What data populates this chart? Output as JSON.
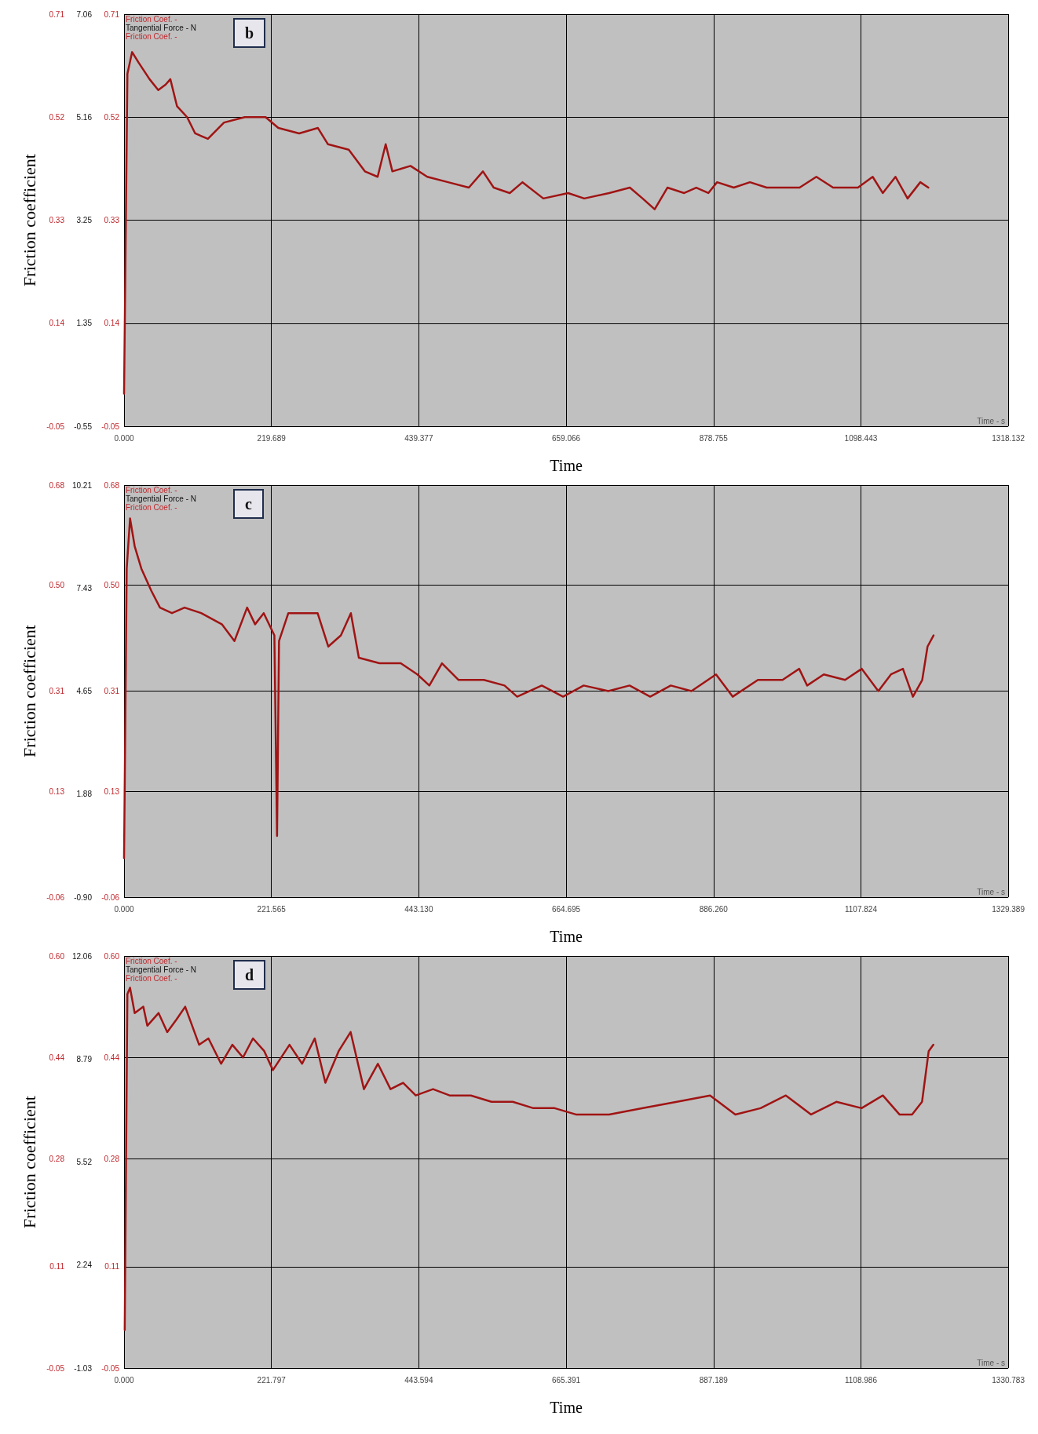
{
  "chart_data": [
    {
      "type": "line",
      "title": "b",
      "xlabel": "Time",
      "ylabel": "Friction coefficient",
      "annotations": [
        "Friction Coef. -",
        "Tangential Force - N",
        "Friction Coef. -",
        "Time - s"
      ],
      "grid": true,
      "marker": "none",
      "xlim": [
        0,
        1318.132
      ],
      "xticks": [
        {
          "value": 0,
          "label": "0.000"
        },
        219.689,
        439.377,
        659.066,
        878.755,
        1098.443,
        1318.132
      ],
      "ylim": [
        -0.05,
        0.71
      ],
      "yticks": [
        -0.05,
        0.14,
        0.33,
        0.52,
        0.71
      ],
      "y2lim": [
        -0.55,
        7.06
      ],
      "y2ticks": [
        -0.55,
        1.35,
        3.25,
        5.16,
        7.06
      ],
      "y3lim": [
        -0.05,
        0.71
      ],
      "y3ticks": [
        -0.05,
        0.14,
        0.33,
        0.52,
        0.71
      ],
      "x": [
        0,
        5,
        12,
        22,
        38,
        51,
        62,
        69,
        79,
        94,
        106,
        125,
        149,
        180,
        211,
        230,
        261,
        289,
        304,
        335,
        359,
        378,
        390,
        400,
        427,
        452,
        483,
        514,
        535,
        551,
        575,
        594,
        625,
        662,
        686,
        723,
        754,
        773,
        791,
        810,
        835,
        853,
        871,
        884,
        909,
        933,
        958,
        983,
        1007,
        1032,
        1057,
        1094,
        1116,
        1131,
        1150,
        1168,
        1187,
        1199
      ],
      "series": [
        {
          "color": "#a01414",
          "values": [
            0.01,
            0.6,
            0.64,
            0.62,
            0.59,
            0.57,
            0.58,
            0.59,
            0.54,
            0.52,
            0.49,
            0.48,
            0.51,
            0.52,
            0.52,
            0.5,
            0.49,
            0.5,
            0.47,
            0.46,
            0.42,
            0.41,
            0.47,
            0.42,
            0.43,
            0.41,
            0.4,
            0.39,
            0.42,
            0.39,
            0.38,
            0.4,
            0.37,
            0.38,
            0.37,
            0.38,
            0.39,
            0.37,
            0.35,
            0.39,
            0.38,
            0.39,
            0.38,
            0.4,
            0.39,
            0.4,
            0.39,
            0.39,
            0.39,
            0.41,
            0.39,
            0.39,
            0.41,
            0.38,
            0.41,
            0.37,
            0.4,
            0.39
          ]
        }
      ]
    },
    {
      "type": "line",
      "title": "c",
      "xlabel": "Time",
      "ylabel": "Friction coefficient",
      "annotations": [
        "Friction Coef. -",
        "Tangential Force - N",
        "Friction Coef. -",
        "Time - s"
      ],
      "grid": true,
      "marker": "none",
      "xlim": [
        0,
        1329.389
      ],
      "xticks": [
        {
          "value": 0,
          "label": "0.000"
        },
        221.565,
        {
          "value": 443.13,
          "label": "443.130"
        },
        664.695,
        {
          "value": 886.26,
          "label": "886.260"
        },
        1107.824,
        1329.389
      ],
      "ylim": [
        -0.06,
        0.68
      ],
      "yticks": [
        -0.06,
        0.13,
        0.31,
        {
          "value": 0.5,
          "label": "0.50"
        },
        0.68
      ],
      "y2lim": [
        -0.9,
        10.21
      ],
      "y2ticks": [
        {
          "value": -0.9,
          "label": "-0.90"
        },
        1.88,
        4.65,
        7.43,
        10.21
      ],
      "y3lim": [
        -0.06,
        0.68
      ],
      "y3ticks": [
        -0.06,
        0.13,
        0.31,
        {
          "value": 0.5,
          "label": "0.50"
        },
        0.68
      ],
      "x": [
        0,
        4,
        9,
        16,
        26,
        41,
        54,
        72,
        91,
        116,
        147,
        166,
        185,
        197,
        210,
        226,
        230,
        233,
        247,
        266,
        291,
        307,
        326,
        341,
        353,
        384,
        416,
        441,
        459,
        478,
        503,
        541,
        572,
        591,
        628,
        660,
        691,
        728,
        760,
        791,
        822,
        853,
        890,
        915,
        953,
        990,
        1015,
        1027,
        1052,
        1084,
        1109,
        1134,
        1153,
        1171,
        1186,
        1200,
        1208,
        1217
      ],
      "series": [
        {
          "color": "#a01414",
          "values": [
            0.01,
            0.53,
            0.62,
            0.57,
            0.53,
            0.49,
            0.46,
            0.45,
            0.46,
            0.45,
            0.43,
            0.4,
            0.46,
            0.43,
            0.45,
            0.41,
            0.05,
            0.4,
            0.45,
            0.45,
            0.45,
            0.39,
            0.41,
            0.45,
            0.37,
            0.36,
            0.36,
            0.34,
            0.32,
            0.36,
            0.33,
            0.33,
            0.32,
            0.3,
            0.32,
            0.3,
            0.32,
            0.31,
            0.32,
            0.3,
            0.32,
            0.31,
            0.34,
            0.3,
            0.33,
            0.33,
            0.35,
            0.32,
            0.34,
            0.33,
            0.35,
            0.31,
            0.34,
            0.35,
            0.3,
            0.33,
            0.39,
            0.41
          ]
        }
      ]
    },
    {
      "type": "line",
      "title": "d",
      "xlabel": "Time",
      "ylabel": "Friction coefficient",
      "annotations": [
        "Friction Coef. -",
        "Tangential Force - N",
        "Friction Coef. -",
        "Time - s"
      ],
      "grid": true,
      "marker": "none",
      "xlim": [
        0,
        1330.783
      ],
      "xticks": [
        {
          "value": 0,
          "label": "0.000"
        },
        221.797,
        443.594,
        665.391,
        887.189,
        1108.986,
        1330.783
      ],
      "ylim": [
        -0.05,
        0.6
      ],
      "yticks": [
        -0.05,
        0.11,
        0.28,
        0.44,
        {
          "value": 0.6,
          "label": "0.60"
        }
      ],
      "y2lim": [
        -1.03,
        12.06
      ],
      "y2ticks": [
        -1.03,
        2.24,
        5.52,
        8.79,
        12.06
      ],
      "y3lim": [
        -0.05,
        0.6
      ],
      "y3ticks": [
        -0.05,
        0.11,
        0.28,
        0.44,
        {
          "value": 0.6,
          "label": "0.60"
        }
      ],
      "x": [
        1,
        5,
        9,
        16,
        29,
        35,
        52,
        65,
        79,
        92,
        113,
        127,
        146,
        163,
        179,
        194,
        211,
        224,
        249,
        268,
        287,
        303,
        323,
        341,
        361,
        382,
        401,
        420,
        439,
        465,
        490,
        522,
        553,
        585,
        616,
        648,
        680,
        730,
        781,
        832,
        882,
        920,
        958,
        996,
        1034,
        1072,
        1110,
        1142,
        1167,
        1186,
        1201,
        1211,
        1218
      ],
      "series": [
        {
          "color": "#a01414",
          "values": [
            0.01,
            0.54,
            0.55,
            0.51,
            0.52,
            0.49,
            0.51,
            0.48,
            0.5,
            0.52,
            0.46,
            0.47,
            0.43,
            0.46,
            0.44,
            0.47,
            0.45,
            0.42,
            0.46,
            0.43,
            0.47,
            0.4,
            0.45,
            0.48,
            0.39,
            0.43,
            0.39,
            0.4,
            0.38,
            0.39,
            0.38,
            0.38,
            0.37,
            0.37,
            0.36,
            0.36,
            0.35,
            0.35,
            0.36,
            0.37,
            0.38,
            0.35,
            0.36,
            0.38,
            0.35,
            0.37,
            0.36,
            0.38,
            0.35,
            0.35,
            0.37,
            0.45,
            0.46
          ]
        }
      ]
    }
  ]
}
